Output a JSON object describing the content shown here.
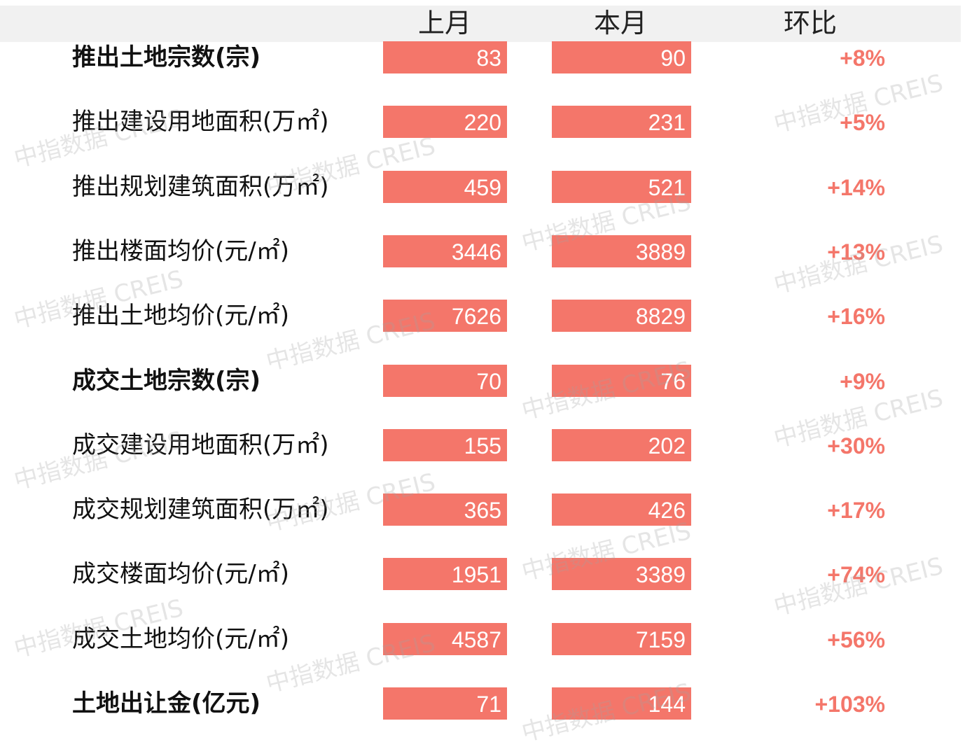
{
  "chart_data": {
    "type": "table",
    "columns": [
      "上月",
      "本月",
      "环比"
    ],
    "rows": [
      {
        "label": "推出土地宗数(宗)",
        "bold": true,
        "prev": 83,
        "curr": 90,
        "change": "+8%"
      },
      {
        "label": "推出建设用地面积(万㎡)",
        "bold": false,
        "prev": 220,
        "curr": 231,
        "change": "+5%"
      },
      {
        "label": "推出规划建筑面积(万㎡)",
        "bold": false,
        "prev": 459,
        "curr": 521,
        "change": "+14%"
      },
      {
        "label": "推出楼面均价(元/㎡)",
        "bold": false,
        "prev": 3446,
        "curr": 3889,
        "change": "+13%"
      },
      {
        "label": "推出土地均价(元/㎡)",
        "bold": false,
        "prev": 7626,
        "curr": 8829,
        "change": "+16%"
      },
      {
        "label": "成交土地宗数(宗)",
        "bold": true,
        "prev": 70,
        "curr": 76,
        "change": "+9%"
      },
      {
        "label": "成交建设用地面积(万㎡)",
        "bold": false,
        "prev": 155,
        "curr": 202,
        "change": "+30%"
      },
      {
        "label": "成交规划建筑面积(万㎡)",
        "bold": false,
        "prev": 365,
        "curr": 426,
        "change": "+17%"
      },
      {
        "label": "成交楼面均价(元/㎡)",
        "bold": false,
        "prev": 1951,
        "curr": 3389,
        "change": "+74%"
      },
      {
        "label": "成交土地均价(元/㎡)",
        "bold": false,
        "prev": 4587,
        "curr": 7159,
        "change": "+56%"
      },
      {
        "label": "土地出让金(亿元)",
        "bold": true,
        "prev": 71,
        "curr": 144,
        "change": "+103%"
      }
    ]
  },
  "watermark": "中指数据 CREIS",
  "colors": {
    "bar": "#f4766a",
    "change_text": "#f4766a",
    "header_band": "#f1f1f1"
  }
}
